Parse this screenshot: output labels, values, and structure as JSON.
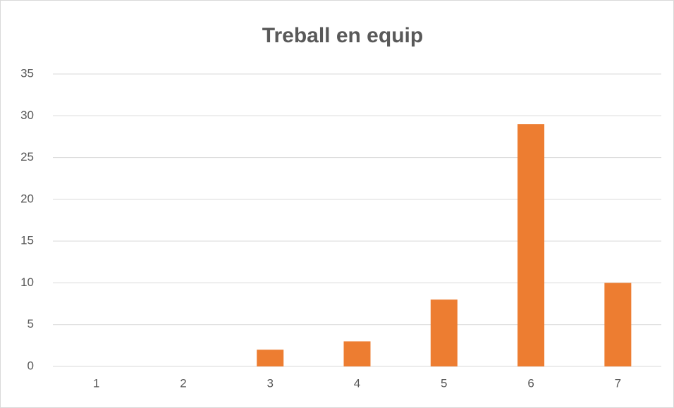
{
  "chart_data": {
    "type": "bar",
    "title": "Treball en equip",
    "categories": [
      "1",
      "2",
      "3",
      "4",
      "5",
      "6",
      "7"
    ],
    "values": [
      0,
      0,
      2,
      3,
      8,
      29,
      10
    ],
    "color": "#ed7d31",
    "ylim": [
      0,
      35
    ],
    "yticks": [
      0,
      5,
      10,
      15,
      20,
      25,
      30,
      35
    ],
    "grid": true
  }
}
